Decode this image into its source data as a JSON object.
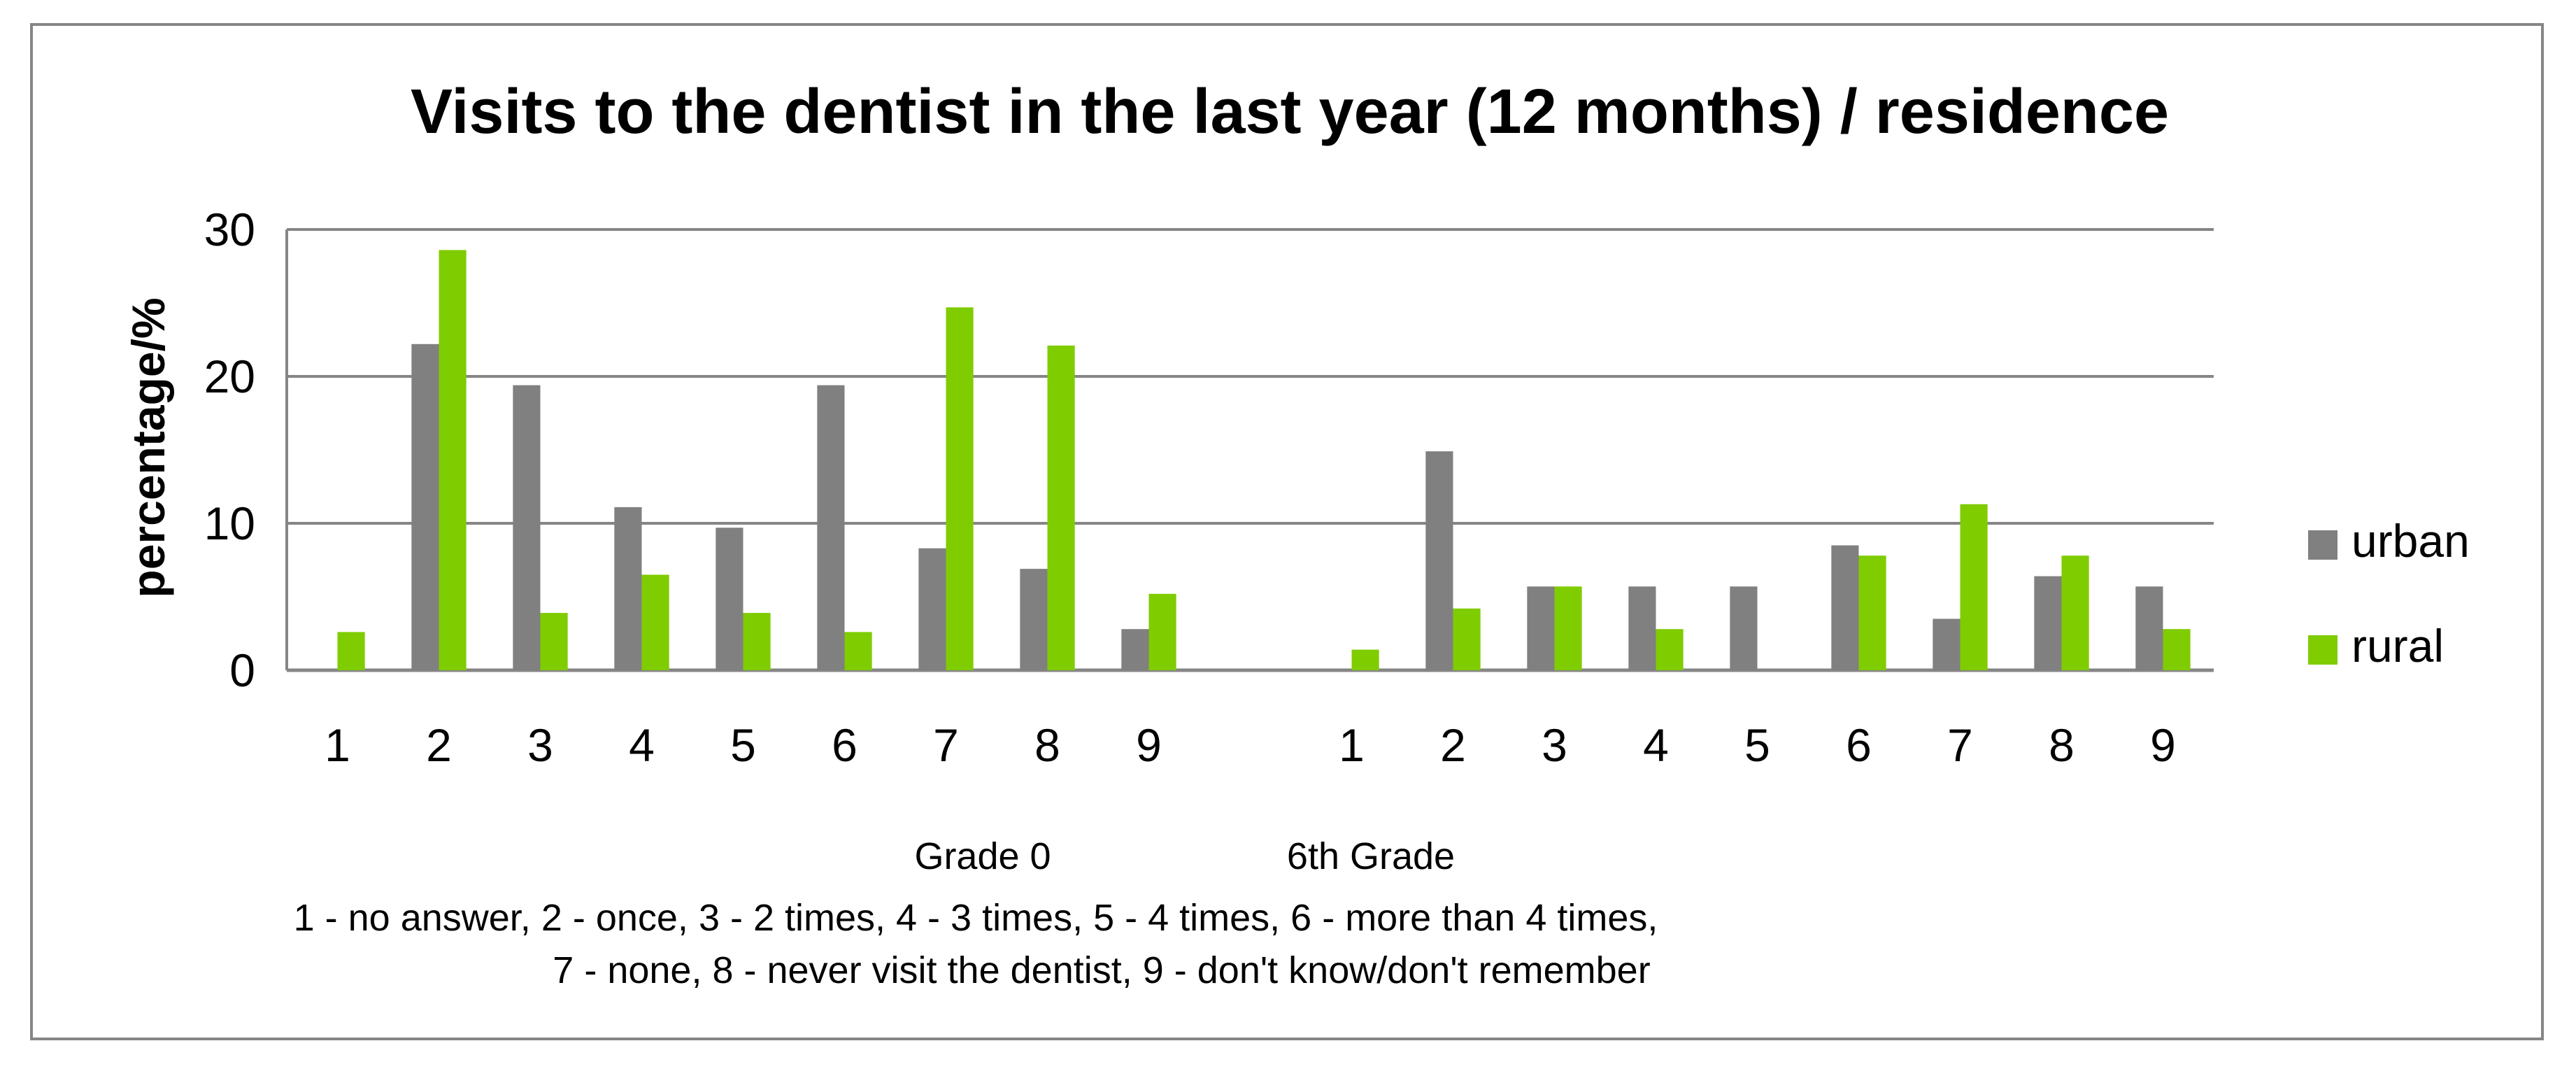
{
  "chart_data": {
    "type": "bar",
    "title": "Visits to the dentist in the last year (12 months) / residence",
    "xlabel": "",
    "ylabel": "percentage/%",
    "ylim": [
      0,
      30
    ],
    "yticks": [
      "0",
      "10",
      "20",
      "30"
    ],
    "grid": true,
    "legend_position": "right",
    "groups": [
      {
        "label": "Grade 0",
        "categories": [
          "1",
          "2",
          "3",
          "4",
          "5",
          "6",
          "7",
          "8",
          "9"
        ]
      },
      {
        "label": "6th Grade",
        "categories": [
          "1",
          "2",
          "3",
          "4",
          "5",
          "6",
          "7",
          "8",
          "9"
        ]
      }
    ],
    "series": [
      {
        "name": "urban",
        "color": "#808080",
        "values": [
          0,
          22.2,
          19.4,
          11.1,
          9.7,
          19.4,
          8.3,
          6.9,
          2.8,
          0,
          14.9,
          5.7,
          5.7,
          5.7,
          8.5,
          3.5,
          6.4,
          5.7
        ]
      },
      {
        "name": "rural",
        "color": "#7fcc00",
        "values": [
          2.6,
          28.6,
          3.9,
          6.5,
          3.9,
          2.6,
          24.7,
          22.1,
          5.2,
          1.4,
          4.2,
          5.7,
          2.8,
          0,
          7.8,
          11.3,
          7.8,
          2.8
        ]
      }
    ],
    "annotation_lines": [
      "1 - no answer, 2 - once, 3 - 2 times, 4 - 3 times, 5 - 4 times, 6 - more than 4 times,",
      "7 - none, 8 - never visit the dentist, 9 - don't know/don't remember"
    ],
    "colors": {
      "axis": "#868686",
      "grid": "#868686",
      "frame": "#868686"
    }
  }
}
